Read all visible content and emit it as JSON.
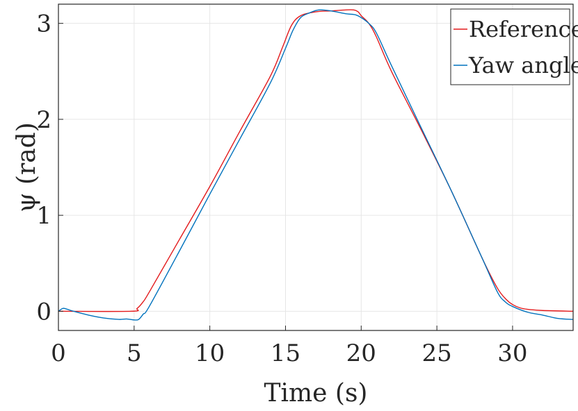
{
  "chart_data": {
    "type": "line",
    "title": "",
    "xlabel": "Time (s)",
    "ylabel": "ψ (rad)",
    "xlim": [
      0,
      34
    ],
    "ylim": [
      -0.2,
      3.2
    ],
    "grid": true,
    "legend_position": "top-right",
    "x_ticks": [
      0,
      5,
      10,
      15,
      20,
      25,
      30
    ],
    "y_ticks": [
      0,
      1,
      2,
      3
    ],
    "series": [
      {
        "name": "Reference",
        "color": "#e31a1c",
        "points": [
          [
            0,
            0
          ],
          [
            4.8,
            0
          ],
          [
            5.2,
            0.03
          ],
          [
            5.6,
            0.1
          ],
          [
            6,
            0.2
          ],
          [
            8,
            0.75
          ],
          [
            10,
            1.3
          ],
          [
            12,
            1.88
          ],
          [
            14,
            2.45
          ],
          [
            14.8,
            2.75
          ],
          [
            15.4,
            2.98
          ],
          [
            16,
            3.08
          ],
          [
            17,
            3.12
          ],
          [
            18,
            3.13
          ],
          [
            19,
            3.14
          ],
          [
            19.5,
            3.14
          ],
          [
            19.8,
            3.12
          ],
          [
            20,
            3.08
          ],
          [
            20.5,
            3
          ],
          [
            21,
            2.86
          ],
          [
            22,
            2.5
          ],
          [
            24,
            1.88
          ],
          [
            26,
            1.24
          ],
          [
            28,
            0.55
          ],
          [
            29,
            0.24
          ],
          [
            29.6,
            0.12
          ],
          [
            30,
            0.07
          ],
          [
            30.5,
            0.035
          ],
          [
            31,
            0.02
          ],
          [
            32,
            0.008
          ],
          [
            34,
            0
          ]
        ]
      },
      {
        "name": "Yaw angle",
        "color": "#0072bd",
        "points": [
          [
            0,
            0
          ],
          [
            0.3,
            0.03
          ],
          [
            0.6,
            0.02
          ],
          [
            1,
            0
          ],
          [
            2,
            -0.04
          ],
          [
            3,
            -0.07
          ],
          [
            4,
            -0.085
          ],
          [
            4.5,
            -0.08
          ],
          [
            5,
            -0.09
          ],
          [
            5.3,
            -0.085
          ],
          [
            5.6,
            -0.03
          ],
          [
            6,
            0.05
          ],
          [
            8,
            0.63
          ],
          [
            10,
            1.22
          ],
          [
            12,
            1.8
          ],
          [
            14,
            2.38
          ],
          [
            15,
            2.74
          ],
          [
            15.5,
            2.93
          ],
          [
            16,
            3.06
          ],
          [
            16.6,
            3.11
          ],
          [
            17.2,
            3.14
          ],
          [
            18,
            3.13
          ],
          [
            19,
            3.1
          ],
          [
            19.6,
            3.09
          ],
          [
            20,
            3.06
          ],
          [
            20.5,
            3
          ],
          [
            21,
            2.9
          ],
          [
            22,
            2.56
          ],
          [
            24,
            1.9
          ],
          [
            26,
            1.24
          ],
          [
            28,
            0.55
          ],
          [
            29,
            0.2
          ],
          [
            29.5,
            0.1
          ],
          [
            30,
            0.05
          ],
          [
            31,
            -0.01
          ],
          [
            32,
            -0.04
          ],
          [
            33,
            -0.075
          ],
          [
            34,
            -0.085
          ]
        ]
      }
    ]
  }
}
